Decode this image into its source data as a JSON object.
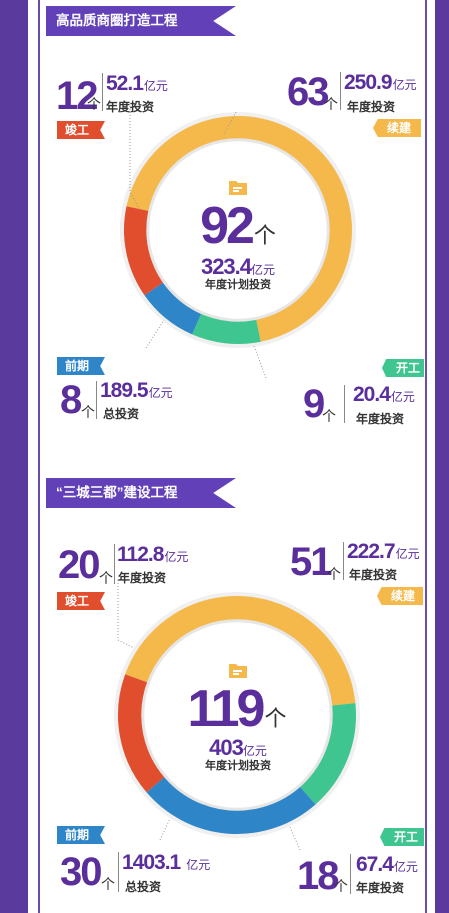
{
  "colors": {
    "frame": "#5b3a9e",
    "ribbon": "#6241b8",
    "number": "#5a2e9b",
    "completed": "#e04e2e",
    "ongoing": "#f5b84a",
    "preliminary": "#2e86c8",
    "started": "#3fc58f"
  },
  "sections": [
    {
      "title": "高品质商圈打造工程",
      "total": {
        "count": "92",
        "unit": "个",
        "invest": "323.4",
        "invest_unit": "亿元",
        "label": "年度计划投资"
      },
      "stats": {
        "completed": {
          "tag": "竣工",
          "count": "12",
          "unit": "个",
          "invest": "52.1",
          "invest_unit": "亿元",
          "label": "年度投资"
        },
        "ongoing": {
          "tag": "续建",
          "count": "63",
          "unit": "个",
          "invest": "250.9",
          "invest_unit": "亿元",
          "label": "年度投资"
        },
        "preliminary": {
          "tag": "前期",
          "count": "8",
          "unit": "个",
          "invest": "189.5",
          "invest_unit": "亿元",
          "label": "总投资"
        },
        "started": {
          "tag": "开工",
          "count": "9",
          "unit": "个",
          "invest": "20.4",
          "invest_unit": "亿元",
          "label": "年度投资"
        }
      }
    },
    {
      "title": "“三城三都”建设工程",
      "total": {
        "count": "119",
        "unit": "个",
        "invest": "403",
        "invest_unit": "亿元",
        "label": "年度计划投资"
      },
      "stats": {
        "completed": {
          "tag": "竣工",
          "count": "20",
          "unit": "个",
          "invest": "112.8",
          "invest_unit": "亿元",
          "label": "年度投资"
        },
        "ongoing": {
          "tag": "续建",
          "count": "51",
          "unit": "个",
          "invest": "222.7",
          "invest_unit": "亿元",
          "label": "年度投资"
        },
        "preliminary": {
          "tag": "前期",
          "count": "30",
          "unit": "个",
          "invest": "1403.1",
          "invest_unit": "亿元",
          "label": "总投资"
        },
        "started": {
          "tag": "开工",
          "count": "18",
          "unit": "个",
          "invest": "67.4",
          "invest_unit": "亿元",
          "label": "年度投资"
        }
      }
    }
  ],
  "chart_data": [
    {
      "type": "pie",
      "categories": [
        "续建",
        "开工",
        "前期",
        "竣工"
      ],
      "values": [
        63,
        9,
        8,
        12
      ],
      "colors": [
        "#f5b84a",
        "#3fc58f",
        "#2e86c8",
        "#e04e2e"
      ]
    },
    {
      "type": "pie",
      "categories": [
        "续建",
        "开工",
        "前期",
        "竣工"
      ],
      "values": [
        51,
        18,
        30,
        20
      ],
      "colors": [
        "#f5b84a",
        "#3fc58f",
        "#2e86c8",
        "#e04e2e"
      ]
    }
  ]
}
